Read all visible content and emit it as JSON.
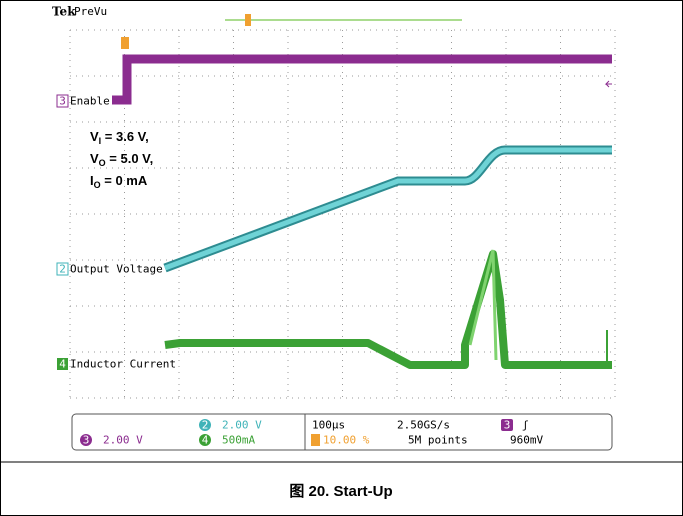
{
  "scope": {
    "brand": "Tek",
    "mode": "PreVu",
    "channels": [
      {
        "number": "3",
        "label": "Enable"
      },
      {
        "number": "2",
        "label": "Output Voltage"
      },
      {
        "number": "4",
        "label": "Inductor Current"
      }
    ],
    "conditions": [
      {
        "symbol": "V",
        "sub": "I",
        "text": " = 3.6 V,"
      },
      {
        "symbol": "V",
        "sub": "O",
        "text": " = 5.0 V,"
      },
      {
        "symbol": "I",
        "sub": "O",
        "text": " = 0 mA"
      }
    ],
    "readout": {
      "ch2": {
        "number": "2",
        "scale": "2.00 V"
      },
      "ch3": {
        "number": "3",
        "scale": "2.00 V"
      },
      "ch4": {
        "number": "4",
        "scale": "500mA"
      },
      "timebase": "100µs",
      "sample_rate": "2.50GS/s",
      "trigger_position": "10.00 %",
      "record_length": "5M points",
      "trigger_source": "3",
      "trigger_slope": "ʃ",
      "trigger_level": "960mV"
    }
  },
  "caption": "图 20. Start-Up"
}
